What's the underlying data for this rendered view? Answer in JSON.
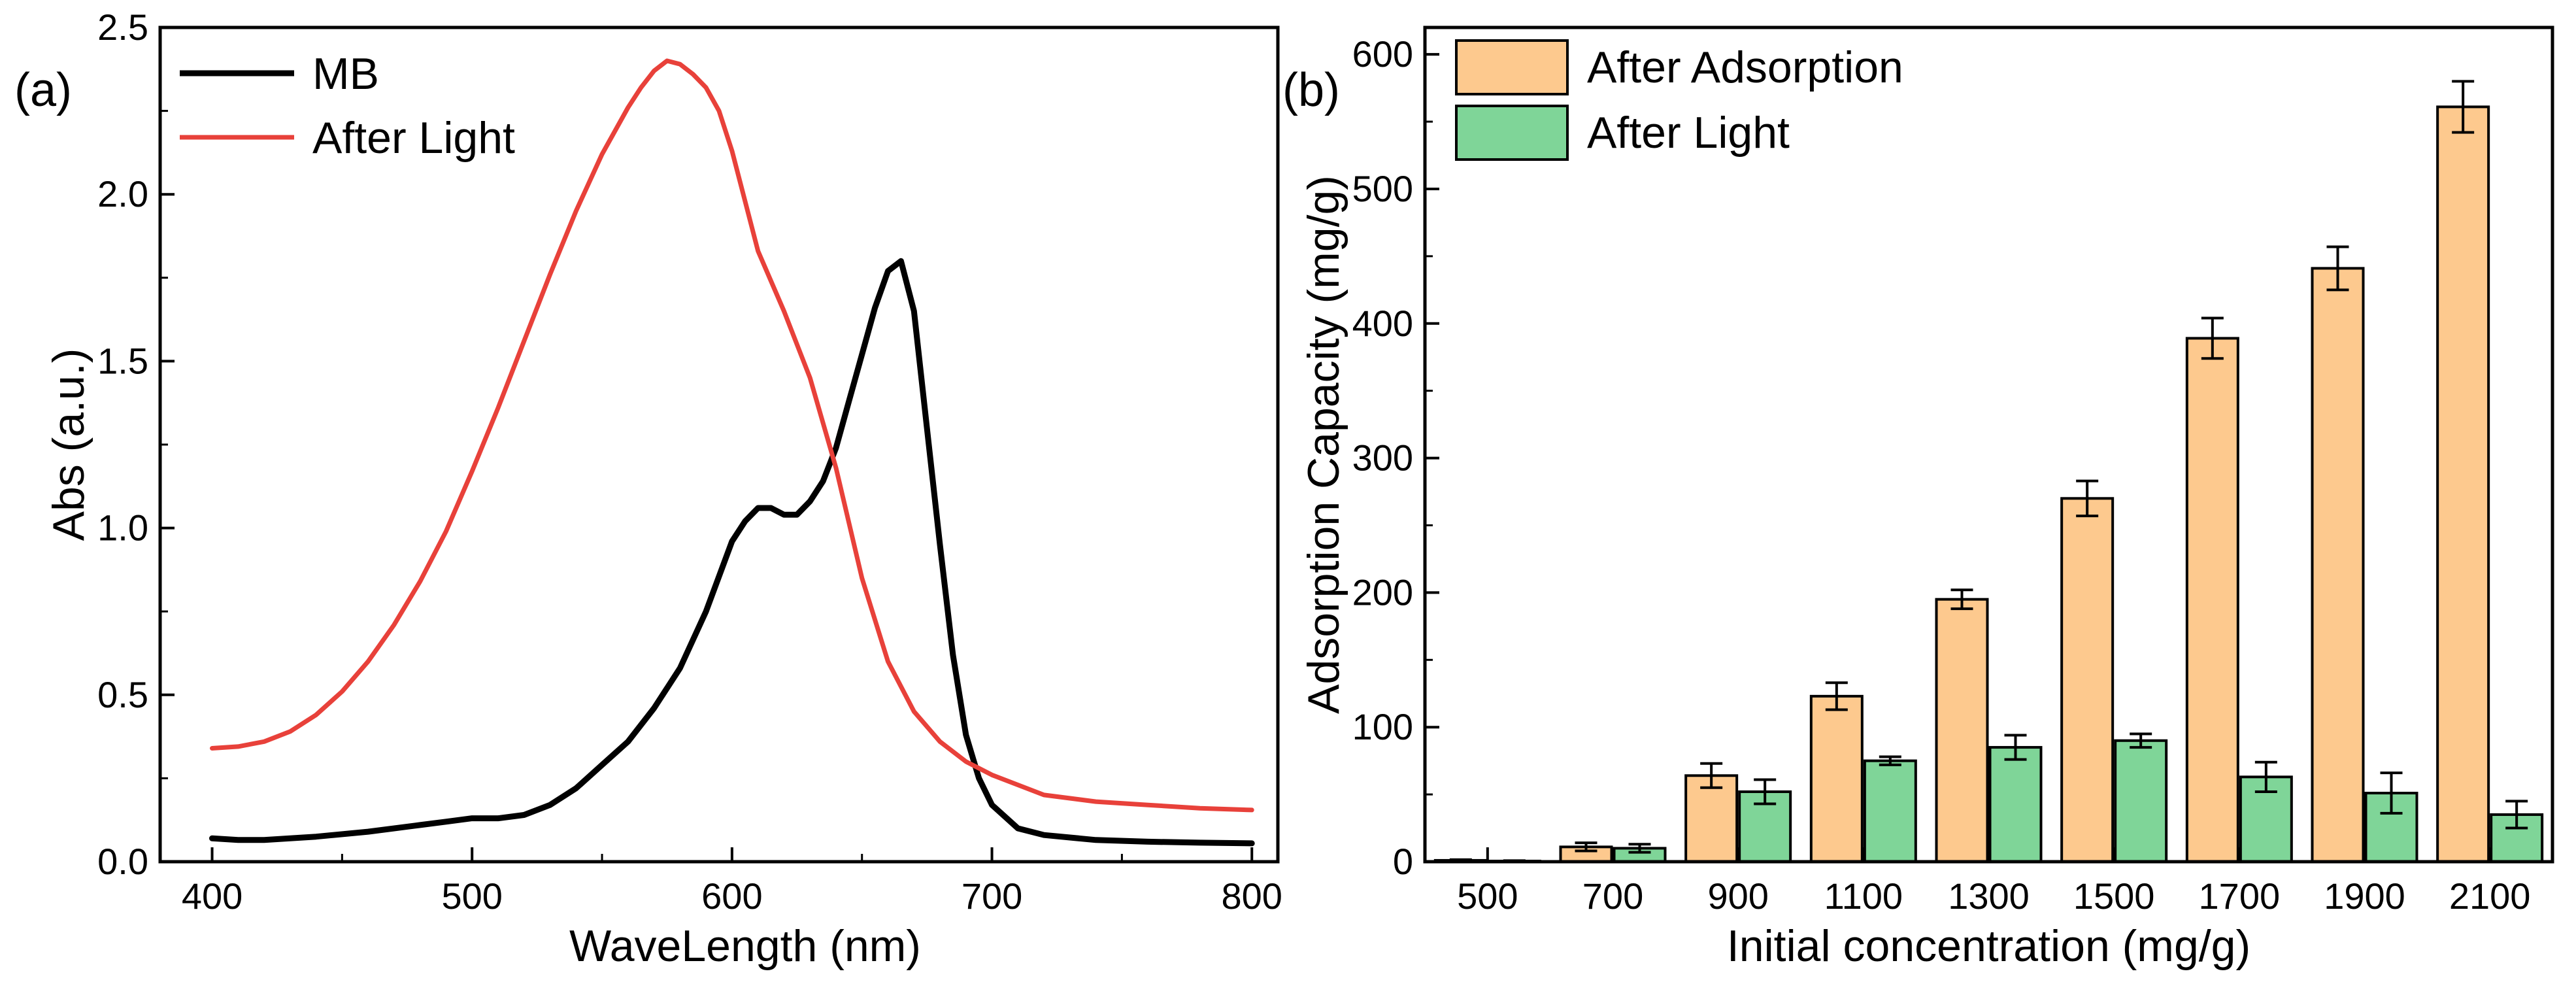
{
  "panel_a_label": "(a)",
  "panel_b_label": "(b)",
  "chart_data": [
    {
      "type": "line",
      "panel": "(a)",
      "title": "",
      "xlabel": "WaveLength (nm)",
      "ylabel": "Abs (a.u.)",
      "xlim": [
        380,
        810
      ],
      "ylim": [
        0.0,
        2.5
      ],
      "xticks": [
        400,
        500,
        600,
        700,
        800
      ],
      "xtick_labels": [
        "400",
        "500",
        "600",
        "700",
        "800"
      ],
      "yticks": [
        0.0,
        0.5,
        1.0,
        1.5,
        2.0,
        2.5
      ],
      "ytick_labels": [
        "0.0",
        "0.5",
        "1.0",
        "1.5",
        "2.0",
        "2.5"
      ],
      "legend_position": "top-left",
      "grid": false,
      "series": [
        {
          "name": "MB",
          "color": "#000000",
          "x": [
            400,
            410,
            420,
            440,
            460,
            480,
            490,
            500,
            510,
            520,
            530,
            540,
            550,
            560,
            570,
            580,
            590,
            600,
            605,
            610,
            615,
            620,
            625,
            630,
            635,
            640,
            645,
            650,
            655,
            660,
            665,
            670,
            675,
            680,
            685,
            690,
            695,
            700,
            710,
            720,
            740,
            760,
            780,
            800
          ],
          "y": [
            0.07,
            0.065,
            0.065,
            0.075,
            0.09,
            0.11,
            0.12,
            0.13,
            0.13,
            0.14,
            0.17,
            0.22,
            0.29,
            0.36,
            0.46,
            0.58,
            0.75,
            0.96,
            1.02,
            1.06,
            1.06,
            1.04,
            1.04,
            1.08,
            1.14,
            1.24,
            1.38,
            1.52,
            1.66,
            1.77,
            1.8,
            1.65,
            1.3,
            0.95,
            0.62,
            0.38,
            0.25,
            0.17,
            0.1,
            0.08,
            0.065,
            0.06,
            0.057,
            0.055
          ]
        },
        {
          "name": "After Light",
          "color": "#e8413a",
          "x": [
            400,
            410,
            420,
            430,
            440,
            450,
            460,
            470,
            480,
            490,
            500,
            510,
            520,
            530,
            540,
            550,
            560,
            565,
            570,
            575,
            580,
            585,
            590,
            595,
            600,
            605,
            610,
            620,
            630,
            640,
            650,
            660,
            670,
            680,
            690,
            700,
            720,
            740,
            760,
            780,
            800
          ],
          "y": [
            0.34,
            0.345,
            0.36,
            0.39,
            0.44,
            0.51,
            0.6,
            0.71,
            0.84,
            0.99,
            1.17,
            1.36,
            1.56,
            1.76,
            1.95,
            2.12,
            2.26,
            2.32,
            2.37,
            2.4,
            2.39,
            2.36,
            2.32,
            2.25,
            2.13,
            1.98,
            1.83,
            1.65,
            1.45,
            1.18,
            0.85,
            0.6,
            0.45,
            0.36,
            0.3,
            0.26,
            0.2,
            0.18,
            0.17,
            0.16,
            0.155
          ]
        }
      ]
    },
    {
      "type": "bar",
      "panel": "(b)",
      "title": "",
      "xlabel": "Initial concentration (mg/g)",
      "ylabel": "Adsorption Capacity (mg/g)",
      "ylim": [
        0,
        620
      ],
      "yticks": [
        0,
        100,
        200,
        300,
        400,
        500,
        600
      ],
      "ytick_labels": [
        "0",
        "100",
        "200",
        "300",
        "400",
        "500",
        "600"
      ],
      "categories": [
        "500",
        "700",
        "900",
        "1100",
        "1300",
        "1500",
        "1700",
        "1900",
        "2100"
      ],
      "legend_position": "top-left",
      "grid": false,
      "series": [
        {
          "name": "After Adsorption",
          "color": "#fdc98e",
          "values": [
            1,
            11,
            64,
            123,
            195,
            270,
            389,
            441,
            561
          ],
          "errors": [
            0.5,
            3,
            9,
            10,
            7,
            13,
            15,
            16,
            19
          ]
        },
        {
          "name": "After Light",
          "color": "#7fd598",
          "values": [
            0.5,
            10,
            52,
            75,
            85,
            90,
            63,
            51,
            35
          ],
          "errors": [
            0.3,
            3,
            9,
            3,
            9,
            5,
            11,
            15,
            10
          ]
        }
      ]
    }
  ]
}
